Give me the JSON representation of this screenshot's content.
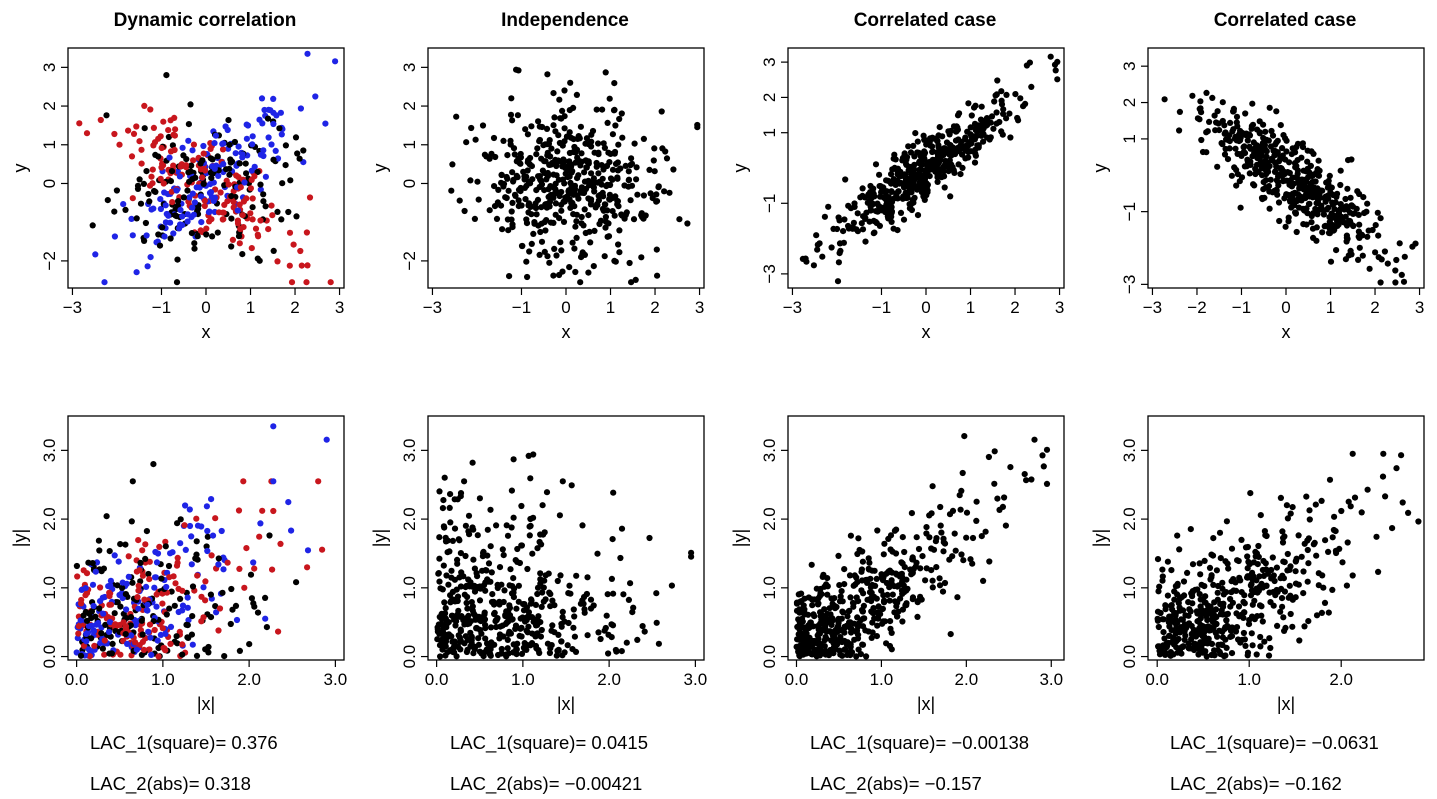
{
  "chart_data": [
    {
      "type": "scatter",
      "title": "Dynamic correlation",
      "xlabel": "x",
      "ylabel": "y",
      "xlim": [
        -3.1,
        3.1
      ],
      "ylim": [
        -2.7,
        3.5
      ],
      "xticks": [
        -3,
        -1,
        0,
        1,
        2,
        3
      ],
      "yticks": [
        -2,
        0,
        1,
        2,
        3
      ],
      "xticklabels": [
        "−3",
        "−1",
        "0",
        "1",
        "2",
        "3"
      ],
      "yticklabels": [
        "−2",
        "0",
        "1",
        "2",
        "3"
      ],
      "generator": {
        "n": 480,
        "mode": "dynamic",
        "rho": 0.8,
        "seed": 11
      },
      "series_colors": [
        "#000000",
        "#c8161d",
        "#1f24e6"
      ]
    },
    {
      "type": "scatter",
      "title": "Independence",
      "xlabel": "x",
      "ylabel": "y",
      "xlim": [
        -3.1,
        3.1
      ],
      "ylim": [
        -2.7,
        3.5
      ],
      "xticks": [
        -3,
        -1,
        0,
        1,
        2,
        3
      ],
      "yticks": [
        -2,
        0,
        1,
        2,
        3
      ],
      "xticklabels": [
        "−3",
        "−1",
        "0",
        "1",
        "2",
        "3"
      ],
      "yticklabels": [
        "−2",
        "0",
        "1",
        "2",
        "3"
      ],
      "generator": {
        "n": 500,
        "mode": "rho",
        "rho": 0.0,
        "seed": 23
      },
      "series_colors": [
        "#000000"
      ]
    },
    {
      "type": "scatter",
      "title": "Correlated case",
      "xlabel": "x",
      "ylabel": "y",
      "xlim": [
        -3.1,
        3.1
      ],
      "ylim": [
        -3.4,
        3.4
      ],
      "xticks": [
        -3,
        -1,
        0,
        1,
        2,
        3
      ],
      "yticks": [
        -3,
        -1,
        1,
        2,
        3
      ],
      "xticklabels": [
        "−3",
        "−1",
        "0",
        "1",
        "2",
        "3"
      ],
      "yticklabels": [
        "−3",
        "−1",
        "1",
        "2",
        "3"
      ],
      "generator": {
        "n": 500,
        "mode": "rho",
        "rho": 0.9,
        "seed": 37
      },
      "series_colors": [
        "#000000"
      ]
    },
    {
      "type": "scatter",
      "title": "Correlated case",
      "xlabel": "x",
      "ylabel": "y",
      "xlim": [
        -3.1,
        3.1
      ],
      "ylim": [
        -3.1,
        3.5
      ],
      "xticks": [
        -3,
        -2,
        -1,
        0,
        1,
        2,
        3
      ],
      "yticks": [
        -3,
        -1,
        1,
        2,
        3
      ],
      "xticklabels": [
        "−3",
        "−2",
        "−1",
        "0",
        "1",
        "2",
        "3"
      ],
      "yticklabels": [
        "−3",
        "−1",
        "1",
        "2",
        "3"
      ],
      "generator": {
        "n": 500,
        "mode": "rho",
        "rho": -0.85,
        "seed": 51
      },
      "series_colors": [
        "#000000"
      ]
    },
    {
      "type": "scatter",
      "title": "",
      "xlabel": "|x|",
      "ylabel": "|y|",
      "xlim": [
        -0.1,
        3.1
      ],
      "ylim": [
        -0.05,
        3.5
      ],
      "xticks": [
        0,
        1,
        2,
        3
      ],
      "yticks": [
        0,
        1,
        2,
        3
      ],
      "xticklabels": [
        "0.0",
        "1.0",
        "2.0",
        "3.0"
      ],
      "yticklabels": [
        "0.0",
        "1.0",
        "2.0",
        "3.0"
      ],
      "abs_of": 0
    },
    {
      "type": "scatter",
      "title": "",
      "xlabel": "|x|",
      "ylabel": "|y|",
      "xlim": [
        -0.1,
        3.1
      ],
      "ylim": [
        -0.05,
        3.5
      ],
      "xticks": [
        0,
        1,
        2,
        3
      ],
      "yticks": [
        0,
        1,
        2,
        3
      ],
      "xticklabels": [
        "0.0",
        "1.0",
        "2.0",
        "3.0"
      ],
      "yticklabels": [
        "0.0",
        "1.0",
        "2.0",
        "3.0"
      ],
      "abs_of": 1
    },
    {
      "type": "scatter",
      "title": "",
      "xlabel": "|x|",
      "ylabel": "|y|",
      "xlim": [
        -0.1,
        3.15
      ],
      "ylim": [
        -0.05,
        3.5
      ],
      "xticks": [
        0,
        1,
        2,
        3
      ],
      "yticks": [
        0,
        1,
        2,
        3
      ],
      "xticklabels": [
        "0.0",
        "1.0",
        "2.0",
        "3.0"
      ],
      "yticklabels": [
        "0.0",
        "1.0",
        "2.0",
        "3.0"
      ],
      "abs_of": 2
    },
    {
      "type": "scatter",
      "title": "",
      "xlabel": "|x|",
      "ylabel": "|y|",
      "xlim": [
        -0.1,
        2.9
      ],
      "ylim": [
        -0.05,
        3.5
      ],
      "xticks": [
        0,
        1,
        2
      ],
      "yticks": [
        0,
        1,
        2,
        3
      ],
      "xticklabels": [
        "0.0",
        "1.0",
        "2.0"
      ],
      "yticklabels": [
        "0.0",
        "1.0",
        "2.0",
        "3.0"
      ],
      "abs_of": 3
    }
  ],
  "statistics": [
    {
      "lac1": "LAC_1(square)= 0.376",
      "lac2": "LAC_2(abs)= 0.318"
    },
    {
      "lac1": "LAC_1(square)= 0.0415",
      "lac2": "LAC_2(abs)= −0.00421"
    },
    {
      "lac1": "LAC_1(square)= −0.00138",
      "lac2": "LAC_2(abs)= −0.157"
    },
    {
      "lac1": "LAC_1(square)= −0.0631",
      "lac2": "LAC_2(abs)= −0.162"
    }
  ]
}
